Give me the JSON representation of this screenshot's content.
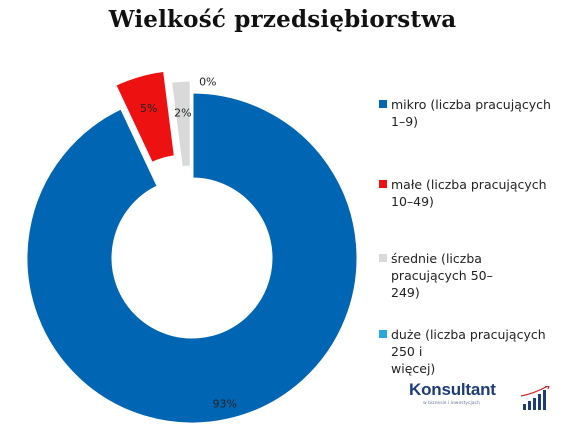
{
  "chart_data": {
    "type": "pie",
    "variant": "donut-exploded",
    "title": "Wielkość przedsiębiorstwa",
    "categories": [
      "mikro (liczba pracujących 1–9)",
      "małe (liczba pracujących 10–49)",
      "średnie (liczba pracujących 50–249)",
      "duże (liczba pracujących 250 i więcej)"
    ],
    "values": [
      93,
      5,
      2,
      0
    ],
    "data_labels": [
      "93%",
      "5%",
      "2%",
      "0%"
    ],
    "colors": [
      "#0066b3",
      "#ee1111",
      "#d9d9d9",
      "#29a8e0"
    ],
    "legend_position": "right"
  },
  "legend": {
    "items": [
      {
        "lines": [
          "mikro (liczba pracujących 1–9)"
        ]
      },
      {
        "lines": [
          "małe (liczba pracujących 10–49)"
        ]
      },
      {
        "lines": [
          "średnie (liczba pracujących 50–",
          "249)"
        ]
      },
      {
        "lines": [
          "duże (liczba pracujących 250 i",
          "więcej)"
        ]
      }
    ]
  },
  "brand": {
    "name": "Konsultant",
    "tagline": "w biznesie i inwestycjach",
    "colors": {
      "primary": "#1d3d7a",
      "accent": "#d32020"
    }
  }
}
